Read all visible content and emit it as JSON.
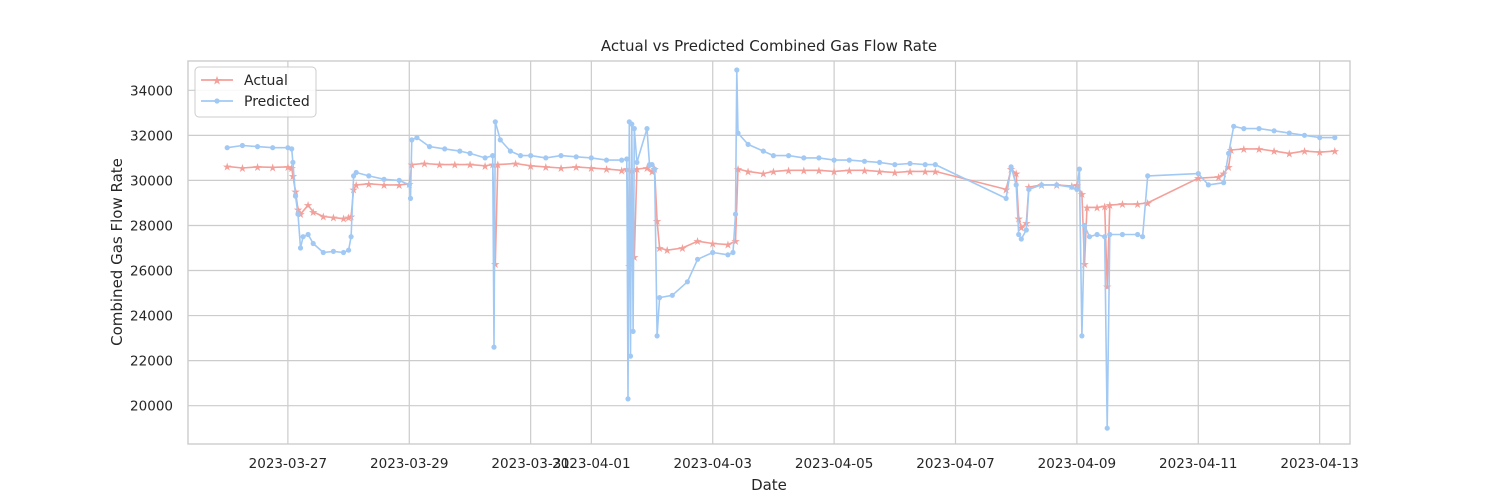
{
  "chart_data": {
    "type": "line",
    "title": "Actual vs Predicted Combined Gas Flow Rate",
    "xlabel": "Date",
    "ylabel": "Combined Gas Flow Rate",
    "x_ticks": [
      "2023-03-27",
      "2023-03-29",
      "2023-03-31",
      "2023-04-01",
      "2023-04-03",
      "2023-04-05",
      "2023-04-07",
      "2023-04-09",
      "2023-04-11",
      "2023-04-13"
    ],
    "y_ticks": [
      20000,
      22000,
      24000,
      26000,
      28000,
      30000,
      32000,
      34000
    ],
    "xlim": [
      "2023-03-25T08:30",
      "2023-04-13T12:00"
    ],
    "ylim": [
      18300,
      35300
    ],
    "grid": true,
    "legend_position": "top-left",
    "series": [
      {
        "name": "Actual",
        "color": "#f4a09a",
        "marker": "star",
        "points": [
          [
            "2023-03-26T00:00",
            30620
          ],
          [
            "2023-03-26T06:00",
            30550
          ],
          [
            "2023-03-26T12:00",
            30600
          ],
          [
            "2023-03-26T18:00",
            30580
          ],
          [
            "2023-03-27T00:00",
            30600
          ],
          [
            "2023-03-27T01:30",
            30550
          ],
          [
            "2023-03-27T02:00",
            30200
          ],
          [
            "2023-03-27T03:00",
            29500
          ],
          [
            "2023-03-27T04:00",
            28700
          ],
          [
            "2023-03-27T05:00",
            28500
          ],
          [
            "2023-03-27T08:00",
            28900
          ],
          [
            "2023-03-27T10:00",
            28600
          ],
          [
            "2023-03-27T14:00",
            28400
          ],
          [
            "2023-03-27T18:00",
            28350
          ],
          [
            "2023-03-27T22:00",
            28300
          ],
          [
            "2023-03-28T00:00",
            28350
          ],
          [
            "2023-03-28T01:00",
            28400
          ],
          [
            "2023-03-28T02:00",
            29600
          ],
          [
            "2023-03-28T03:00",
            29800
          ],
          [
            "2023-03-28T08:00",
            29850
          ],
          [
            "2023-03-28T14:00",
            29800
          ],
          [
            "2023-03-28T20:00",
            29800
          ],
          [
            "2023-03-29T00:00",
            29850
          ],
          [
            "2023-03-29T01:00",
            30700
          ],
          [
            "2023-03-29T06:00",
            30750
          ],
          [
            "2023-03-29T12:00",
            30700
          ],
          [
            "2023-03-29T18:00",
            30700
          ],
          [
            "2023-03-30T00:00",
            30700
          ],
          [
            "2023-03-30T06:00",
            30650
          ],
          [
            "2023-03-30T09:00",
            30700
          ],
          [
            "2023-03-30T10:00",
            26300
          ],
          [
            "2023-03-30T11:00",
            30700
          ],
          [
            "2023-03-30T18:00",
            30750
          ],
          [
            "2023-03-31T00:00",
            30650
          ],
          [
            "2023-03-31T06:00",
            30600
          ],
          [
            "2023-03-31T12:00",
            30550
          ],
          [
            "2023-03-31T18:00",
            30600
          ],
          [
            "2023-04-01T00:00",
            30550
          ],
          [
            "2023-04-01T06:00",
            30500
          ],
          [
            "2023-04-01T12:00",
            30450
          ],
          [
            "2023-04-01T14:00",
            30500
          ],
          [
            "2023-04-01T15:00",
            26200
          ],
          [
            "2023-04-01T16:00",
            30450
          ],
          [
            "2023-04-01T17:00",
            26600
          ],
          [
            "2023-04-01T18:00",
            30500
          ],
          [
            "2023-04-01T22:00",
            30550
          ],
          [
            "2023-04-02T00:00",
            30400
          ],
          [
            "2023-04-02T01:00",
            30500
          ],
          [
            "2023-04-02T02:00",
            28200
          ],
          [
            "2023-04-02T03:00",
            27000
          ],
          [
            "2023-04-02T06:00",
            26900
          ],
          [
            "2023-04-02T12:00",
            27000
          ],
          [
            "2023-04-02T18:00",
            27300
          ],
          [
            "2023-04-03T00:00",
            27200
          ],
          [
            "2023-04-03T06:00",
            27150
          ],
          [
            "2023-04-03T09:00",
            27300
          ],
          [
            "2023-04-03T10:00",
            30500
          ],
          [
            "2023-04-03T14:00",
            30400
          ],
          [
            "2023-04-03T20:00",
            30300
          ],
          [
            "2023-04-04T00:00",
            30400
          ],
          [
            "2023-04-04T06:00",
            30450
          ],
          [
            "2023-04-04T12:00",
            30450
          ],
          [
            "2023-04-04T18:00",
            30450
          ],
          [
            "2023-04-05T00:00",
            30400
          ],
          [
            "2023-04-05T06:00",
            30450
          ],
          [
            "2023-04-05T12:00",
            30450
          ],
          [
            "2023-04-05T18:00",
            30400
          ],
          [
            "2023-04-06T00:00",
            30350
          ],
          [
            "2023-04-06T06:00",
            30400
          ],
          [
            "2023-04-06T12:00",
            30400
          ],
          [
            "2023-04-06T16:00",
            30400
          ],
          [
            "2023-04-07T20:00",
            29600
          ],
          [
            "2023-04-07T22:00",
            30500
          ],
          [
            "2023-04-08T00:00",
            30300
          ],
          [
            "2023-04-08T01:00",
            28300
          ],
          [
            "2023-04-08T02:00",
            27900
          ],
          [
            "2023-04-08T04:00",
            28100
          ],
          [
            "2023-04-08T05:00",
            29700
          ],
          [
            "2023-04-08T10:00",
            29800
          ],
          [
            "2023-04-08T16:00",
            29800
          ],
          [
            "2023-04-08T22:00",
            29750
          ],
          [
            "2023-04-09T00:00",
            29800
          ],
          [
            "2023-04-09T02:00",
            29400
          ],
          [
            "2023-04-09T03:00",
            26300
          ],
          [
            "2023-04-09T04:00",
            28800
          ],
          [
            "2023-04-09T08:00",
            28800
          ],
          [
            "2023-04-09T11:00",
            28850
          ],
          [
            "2023-04-09T12:00",
            25300
          ],
          [
            "2023-04-09T13:00",
            28900
          ],
          [
            "2023-04-09T18:00",
            28950
          ],
          [
            "2023-04-10T00:00",
            28950
          ],
          [
            "2023-04-10T04:00",
            29000
          ],
          [
            "2023-04-11T00:00",
            30100
          ],
          [
            "2023-04-11T08:00",
            30150
          ],
          [
            "2023-04-11T10:00",
            30300
          ],
          [
            "2023-04-11T12:00",
            30600
          ],
          [
            "2023-04-11T13:00",
            31350
          ],
          [
            "2023-04-11T18:00",
            31400
          ],
          [
            "2023-04-12T00:00",
            31400
          ],
          [
            "2023-04-12T06:00",
            31300
          ],
          [
            "2023-04-12T12:00",
            31200
          ],
          [
            "2023-04-12T18:00",
            31300
          ],
          [
            "2023-04-13T00:00",
            31250
          ],
          [
            "2023-04-13T06:00",
            31300
          ]
        ]
      },
      {
        "name": "Predicted",
        "color": "#a1c9f4",
        "marker": "circle",
        "points": [
          [
            "2023-03-26T00:00",
            31450
          ],
          [
            "2023-03-26T06:00",
            31550
          ],
          [
            "2023-03-26T12:00",
            31500
          ],
          [
            "2023-03-26T18:00",
            31450
          ],
          [
            "2023-03-27T00:00",
            31450
          ],
          [
            "2023-03-27T01:30",
            31400
          ],
          [
            "2023-03-27T02:00",
            30800
          ],
          [
            "2023-03-27T03:00",
            29300
          ],
          [
            "2023-03-27T04:00",
            28500
          ],
          [
            "2023-03-27T05:00",
            27000
          ],
          [
            "2023-03-27T06:00",
            27500
          ],
          [
            "2023-03-27T08:00",
            27600
          ],
          [
            "2023-03-27T10:00",
            27200
          ],
          [
            "2023-03-27T14:00",
            26800
          ],
          [
            "2023-03-27T18:00",
            26850
          ],
          [
            "2023-03-27T22:00",
            26800
          ],
          [
            "2023-03-28T00:00",
            26900
          ],
          [
            "2023-03-28T01:00",
            27500
          ],
          [
            "2023-03-28T02:00",
            30200
          ],
          [
            "2023-03-28T03:00",
            30350
          ],
          [
            "2023-03-28T08:00",
            30200
          ],
          [
            "2023-03-28T14:00",
            30050
          ],
          [
            "2023-03-28T20:00",
            30000
          ],
          [
            "2023-03-29T00:00",
            29800
          ],
          [
            "2023-03-29T00:30",
            29200
          ],
          [
            "2023-03-29T01:00",
            31800
          ],
          [
            "2023-03-29T03:00",
            31900
          ],
          [
            "2023-03-29T08:00",
            31500
          ],
          [
            "2023-03-29T14:00",
            31400
          ],
          [
            "2023-03-29T20:00",
            31300
          ],
          [
            "2023-03-30T00:00",
            31200
          ],
          [
            "2023-03-30T06:00",
            31000
          ],
          [
            "2023-03-30T09:00",
            31100
          ],
          [
            "2023-03-30T09:30",
            22600
          ],
          [
            "2023-03-30T10:00",
            32600
          ],
          [
            "2023-03-30T12:00",
            31800
          ],
          [
            "2023-03-30T16:00",
            31300
          ],
          [
            "2023-03-30T20:00",
            31100
          ],
          [
            "2023-03-31T00:00",
            31100
          ],
          [
            "2023-03-31T06:00",
            31000
          ],
          [
            "2023-03-31T12:00",
            31100
          ],
          [
            "2023-03-31T18:00",
            31050
          ],
          [
            "2023-04-01T00:00",
            31000
          ],
          [
            "2023-04-01T06:00",
            30900
          ],
          [
            "2023-04-01T12:00",
            30900
          ],
          [
            "2023-04-01T14:00",
            30950
          ],
          [
            "2023-04-01T14:30",
            20300
          ],
          [
            "2023-04-01T15:00",
            32600
          ],
          [
            "2023-04-01T15:30",
            22200
          ],
          [
            "2023-04-01T16:00",
            32500
          ],
          [
            "2023-04-01T16:30",
            23300
          ],
          [
            "2023-04-01T17:00",
            32300
          ],
          [
            "2023-04-01T18:00",
            30800
          ],
          [
            "2023-04-01T22:00",
            32300
          ],
          [
            "2023-04-01T23:00",
            30700
          ],
          [
            "2023-04-02T00:00",
            30700
          ],
          [
            "2023-04-02T01:00",
            30500
          ],
          [
            "2023-04-02T02:00",
            23100
          ],
          [
            "2023-04-02T03:00",
            24800
          ],
          [
            "2023-04-02T08:00",
            24900
          ],
          [
            "2023-04-02T14:00",
            25500
          ],
          [
            "2023-04-02T18:00",
            26500
          ],
          [
            "2023-04-03T00:00",
            26800
          ],
          [
            "2023-04-03T06:00",
            26700
          ],
          [
            "2023-04-03T08:00",
            26800
          ],
          [
            "2023-04-03T09:00",
            28500
          ],
          [
            "2023-04-03T09:30",
            34900
          ],
          [
            "2023-04-03T10:00",
            32100
          ],
          [
            "2023-04-03T14:00",
            31600
          ],
          [
            "2023-04-03T20:00",
            31300
          ],
          [
            "2023-04-04T00:00",
            31100
          ],
          [
            "2023-04-04T06:00",
            31100
          ],
          [
            "2023-04-04T12:00",
            31000
          ],
          [
            "2023-04-04T18:00",
            31000
          ],
          [
            "2023-04-05T00:00",
            30900
          ],
          [
            "2023-04-05T06:00",
            30900
          ],
          [
            "2023-04-05T12:00",
            30850
          ],
          [
            "2023-04-05T18:00",
            30800
          ],
          [
            "2023-04-06T00:00",
            30700
          ],
          [
            "2023-04-06T06:00",
            30750
          ],
          [
            "2023-04-06T12:00",
            30700
          ],
          [
            "2023-04-06T16:00",
            30700
          ],
          [
            "2023-04-07T20:00",
            29200
          ],
          [
            "2023-04-07T22:00",
            30600
          ],
          [
            "2023-04-08T00:00",
            29800
          ],
          [
            "2023-04-08T01:00",
            27600
          ],
          [
            "2023-04-08T02:00",
            27400
          ],
          [
            "2023-04-08T04:00",
            27800
          ],
          [
            "2023-04-08T05:00",
            29600
          ],
          [
            "2023-04-08T10:00",
            29800
          ],
          [
            "2023-04-08T16:00",
            29800
          ],
          [
            "2023-04-08T22:00",
            29700
          ],
          [
            "2023-04-09T00:00",
            29600
          ],
          [
            "2023-04-09T01:00",
            30500
          ],
          [
            "2023-04-09T02:00",
            23100
          ],
          [
            "2023-04-09T03:00",
            28000
          ],
          [
            "2023-04-09T05:00",
            27500
          ],
          [
            "2023-04-09T08:00",
            27600
          ],
          [
            "2023-04-09T11:00",
            27500
          ],
          [
            "2023-04-09T12:00",
            19000
          ],
          [
            "2023-04-09T13:00",
            27600
          ],
          [
            "2023-04-09T18:00",
            27600
          ],
          [
            "2023-04-10T00:00",
            27600
          ],
          [
            "2023-04-10T02:00",
            27500
          ],
          [
            "2023-04-10T04:00",
            30200
          ],
          [
            "2023-04-11T00:00",
            30300
          ],
          [
            "2023-04-11T04:00",
            29800
          ],
          [
            "2023-04-11T10:00",
            29900
          ],
          [
            "2023-04-11T12:00",
            31200
          ],
          [
            "2023-04-11T14:00",
            32400
          ],
          [
            "2023-04-11T18:00",
            32300
          ],
          [
            "2023-04-12T00:00",
            32300
          ],
          [
            "2023-04-12T06:00",
            32200
          ],
          [
            "2023-04-12T12:00",
            32100
          ],
          [
            "2023-04-12T18:00",
            32000
          ],
          [
            "2023-04-13T00:00",
            31900
          ],
          [
            "2023-04-13T06:00",
            31900
          ]
        ]
      }
    ]
  }
}
